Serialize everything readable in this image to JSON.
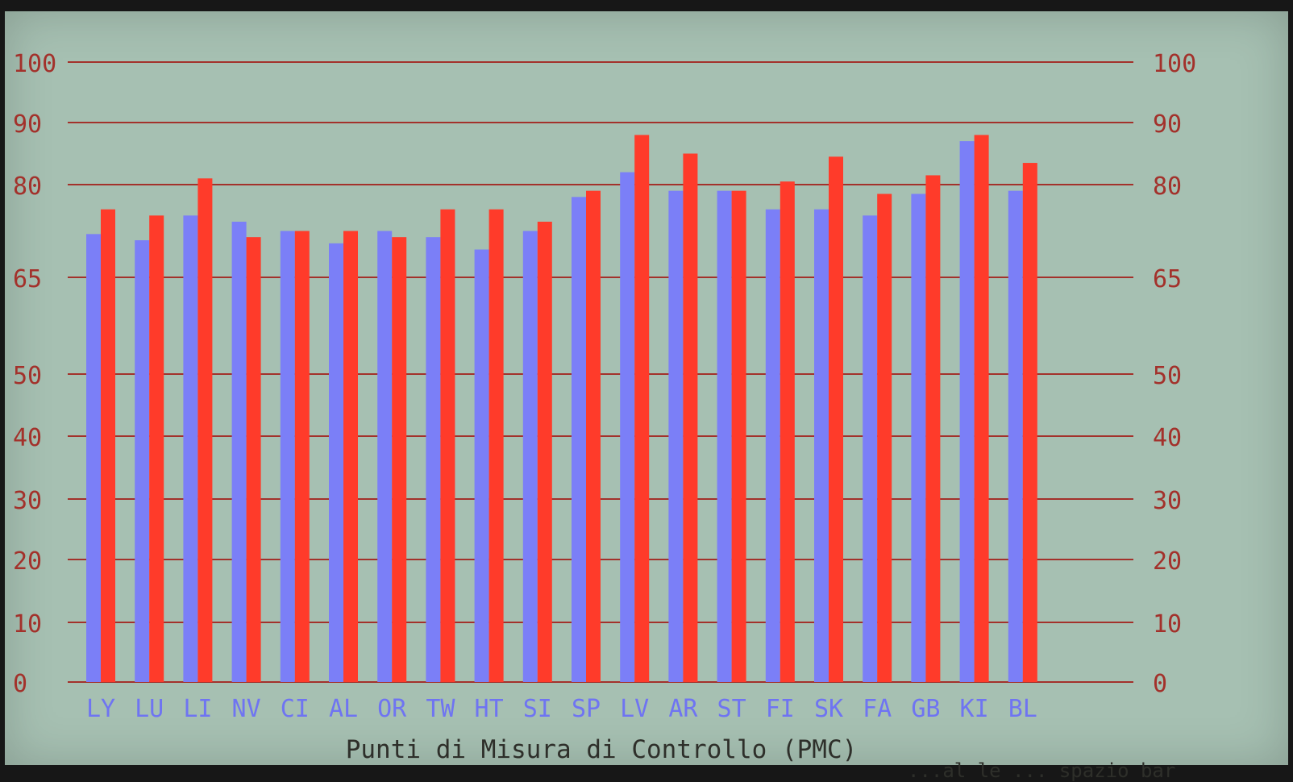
{
  "chart_data": {
    "type": "bar",
    "title": "",
    "xlabel": "Punti di Misura di Controllo (PMC)",
    "ylabel": "",
    "tick_labels": [
      "0",
      "10",
      "20",
      "30",
      "40",
      "50",
      "65",
      "80",
      "90",
      "100"
    ],
    "categories": [
      "LY",
      "LU",
      "LI",
      "NV",
      "CI",
      "AL",
      "OR",
      "TW",
      "HT",
      "SI",
      "SP",
      "LV",
      "AR",
      "ST",
      "FI",
      "SK",
      "FA",
      "GB",
      "KI",
      "BL"
    ],
    "series": [
      {
        "values": [
          72,
          71,
          75,
          74,
          72.5,
          70.5,
          72.5,
          71.5,
          69.5,
          72.5,
          78,
          82,
          79,
          79,
          76,
          76,
          75,
          78.5,
          87,
          79
        ]
      },
      {
        "values": [
          76,
          75,
          81,
          71.5,
          72.5,
          72.5,
          71.5,
          76,
          76,
          74,
          79,
          88,
          85,
          79,
          80.5,
          84.5,
          78.5,
          81.5,
          88,
          83.5
        ]
      }
    ],
    "ylim": [
      0,
      100
    ],
    "grid": true,
    "legend": "none",
    "colors": {
      "series_a": "#7b7ff7",
      "series_b": "#ff3b2a",
      "axis": "#a3312b",
      "category_text": "#6f74f2",
      "background": "#a6c0b2"
    }
  },
  "footer": {
    "partial_text": "...al le ... spazio bar"
  }
}
